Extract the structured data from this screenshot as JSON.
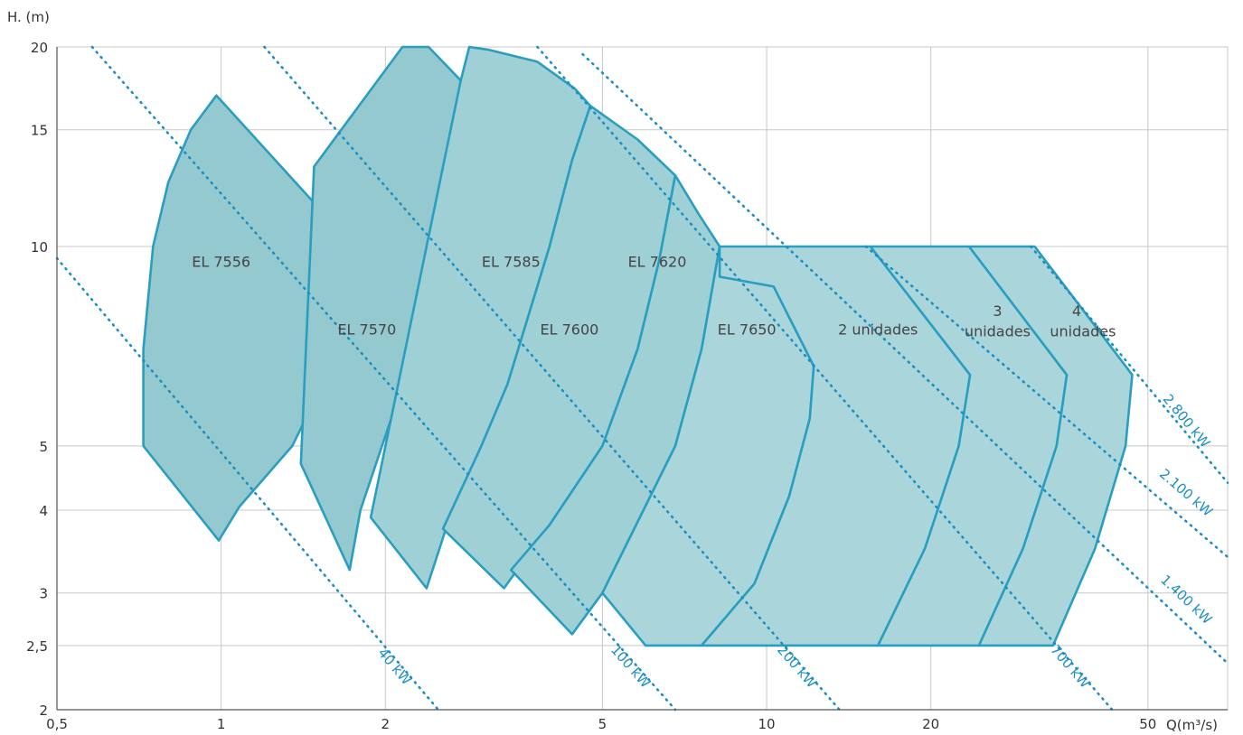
{
  "chart_data": {
    "type": "area",
    "title": "",
    "xlabel": "Q(m³/s)",
    "ylabel": "H. (m)",
    "x_scale": "log",
    "y_scale": "log",
    "xlim": [
      0.5,
      70
    ],
    "ylim": [
      2,
      20
    ],
    "grid": true,
    "x_ticks": [
      {
        "value": 0.5,
        "label": "0,5"
      },
      {
        "value": 1,
        "label": "1"
      },
      {
        "value": 2,
        "label": "2"
      },
      {
        "value": 5,
        "label": "5"
      },
      {
        "value": 10,
        "label": "10"
      },
      {
        "value": 20,
        "label": "20"
      },
      {
        "value": 50,
        "label": "50"
      }
    ],
    "y_ticks": [
      {
        "value": 2,
        "label": "2"
      },
      {
        "value": 2.5,
        "label": "2,5"
      },
      {
        "value": 3,
        "label": "3"
      },
      {
        "value": 4,
        "label": "4"
      },
      {
        "value": 5,
        "label": "5"
      },
      {
        "value": 10,
        "label": "10"
      },
      {
        "value": 15,
        "label": "15"
      },
      {
        "value": 20,
        "label": "20"
      }
    ],
    "colors": {
      "fill": "#9fd0d6",
      "fill_dark": "#94c9d0",
      "fill_light": "#aad6db",
      "stroke": "#2a9ec0",
      "power": "#1a8fc4",
      "grid": "#c8c8c8"
    },
    "regions": [
      {
        "label": "EL 7556",
        "label_at": [
          1.0,
          9.5
        ],
        "points": [
          [
            0.72,
            5.0
          ],
          [
            0.72,
            7.0
          ],
          [
            0.75,
            10.0
          ],
          [
            0.8,
            12.5
          ],
          [
            0.88,
            15.0
          ],
          [
            0.98,
            16.9
          ],
          [
            1.77,
            9.9
          ],
          [
            1.7,
            8.0
          ],
          [
            1.55,
            6.3
          ],
          [
            1.35,
            5.0
          ],
          [
            1.08,
            4.05
          ],
          [
            0.99,
            3.6
          ]
        ]
      },
      {
        "label": "EL 7570",
        "label_at": [
          1.85,
          7.5
        ],
        "points": [
          [
            1.4,
            4.7
          ],
          [
            1.48,
            13.2
          ],
          [
            2.15,
            20.0
          ],
          [
            2.4,
            20.0
          ],
          [
            2.75,
            17.8
          ],
          [
            2.68,
            13.5
          ],
          [
            2.5,
            10.0
          ],
          [
            2.3,
            7.5
          ],
          [
            2.05,
            5.5
          ],
          [
            1.8,
            4.0
          ],
          [
            1.72,
            3.25
          ]
        ]
      },
      {
        "label": "EL 7585",
        "label_at": [
          3.4,
          9.5
        ],
        "points": [
          [
            1.88,
            3.9
          ],
          [
            2.38,
            3.05
          ],
          [
            2.65,
            4.0
          ],
          [
            3.0,
            5.0
          ],
          [
            3.35,
            6.2
          ],
          [
            4.0,
            10.0
          ],
          [
            4.4,
            13.5
          ],
          [
            4.75,
            16.3
          ],
          [
            4.45,
            17.3
          ],
          [
            3.8,
            19.0
          ],
          [
            3.1,
            19.8
          ],
          [
            2.85,
            20.0
          ],
          [
            2.75,
            17.8
          ]
        ]
      },
      {
        "label": "EL 7600",
        "label_at": [
          4.35,
          7.5
        ],
        "points": [
          [
            2.55,
            3.75
          ],
          [
            3.3,
            3.05
          ],
          [
            4.0,
            3.8
          ],
          [
            5.0,
            5.0
          ],
          [
            5.8,
            7.0
          ],
          [
            6.35,
            9.5
          ],
          [
            6.8,
            12.8
          ],
          [
            5.8,
            14.5
          ],
          [
            4.75,
            16.3
          ],
          [
            4.4,
            13.5
          ],
          [
            4.0,
            10.0
          ],
          [
            3.35,
            6.2
          ],
          [
            3.0,
            5.0
          ]
        ]
      },
      {
        "label": "EL 7620",
        "label_at": [
          6.3,
          9.5
        ],
        "points": [
          [
            3.4,
            3.25
          ],
          [
            4.4,
            2.6
          ],
          [
            5.0,
            3.0
          ],
          [
            6.8,
            5.0
          ],
          [
            7.6,
            7.0
          ],
          [
            8.2,
            10.0
          ],
          [
            7.5,
            11.2
          ],
          [
            6.8,
            12.8
          ],
          [
            6.35,
            9.5
          ],
          [
            5.8,
            7.0
          ],
          [
            5.0,
            5.0
          ],
          [
            4.0,
            3.8
          ]
        ]
      },
      {
        "label": "EL 7650",
        "label_at": [
          9.2,
          7.5
        ],
        "points": [
          [
            5.0,
            3.0
          ],
          [
            6.0,
            2.5
          ],
          [
            7.6,
            2.5
          ],
          [
            9.5,
            3.1
          ],
          [
            11.0,
            4.2
          ],
          [
            12.0,
            5.5
          ],
          [
            12.2,
            6.6
          ],
          [
            10.3,
            8.7
          ],
          [
            8.2,
            10.0
          ],
          [
            7.6,
            7.0
          ],
          [
            6.8,
            5.0
          ]
        ]
      },
      {
        "label": "2 unidades",
        "label_at": [
          16.0,
          7.5
        ],
        "points": [
          [
            7.6,
            2.5
          ],
          [
            16.0,
            2.5
          ],
          [
            19.5,
            3.5
          ],
          [
            22.5,
            5.0
          ],
          [
            23.6,
            6.4
          ],
          [
            15.5,
            10.0
          ],
          [
            8.2,
            10.0
          ],
          [
            8.2,
            9.0
          ],
          [
            10.3,
            8.7
          ],
          [
            12.2,
            6.6
          ],
          [
            12.0,
            5.5
          ],
          [
            11.0,
            4.2
          ],
          [
            9.5,
            3.1
          ]
        ]
      },
      {
        "label": "3",
        "label_at": [
          26.5,
          8.0
        ],
        "points": [
          [
            16.0,
            2.5
          ],
          [
            24.5,
            2.5
          ],
          [
            29.5,
            3.5
          ],
          [
            34.0,
            5.0
          ],
          [
            35.5,
            6.4
          ],
          [
            23.5,
            10.0
          ],
          [
            15.5,
            10.0
          ],
          [
            23.6,
            6.4
          ],
          [
            22.5,
            5.0
          ],
          [
            19.5,
            3.5
          ]
        ]
      },
      {
        "label": "4",
        "label_at": [
          37.0,
          8.0
        ],
        "points": [
          [
            24.5,
            2.5
          ],
          [
            33.5,
            2.5
          ],
          [
            40.0,
            3.5
          ],
          [
            45.5,
            5.0
          ],
          [
            46.8,
            6.4
          ],
          [
            31.0,
            10.0
          ],
          [
            23.5,
            10.0
          ],
          [
            35.5,
            6.4
          ],
          [
            34.0,
            5.0
          ],
          [
            29.5,
            3.5
          ]
        ]
      }
    ],
    "region_sublabels": [
      {
        "text": "unidades",
        "at": [
          26.5,
          7.5
        ]
      },
      {
        "text": "unidades",
        "at": [
          38.0,
          7.5
        ]
      }
    ],
    "power_lines": [
      {
        "label": "40 kW",
        "x1": 0.5,
        "y1": 9.6,
        "x2": 2.5,
        "y2": 2.0
      },
      {
        "label": "100 kW",
        "x1": 0.58,
        "y1": 20.0,
        "x2": 6.8,
        "y2": 2.0
      },
      {
        "label": "200 kW",
        "x1": 1.2,
        "y1": 20.0,
        "x2": 13.6,
        "y2": 2.0
      },
      {
        "label": "700 kW",
        "x1": 3.8,
        "y1": 20.0,
        "x2": 43.0,
        "y2": 2.0
      },
      {
        "label": "1.400 kW",
        "x1": 4.6,
        "y1": 19.5,
        "x2": 70.0,
        "y2": 2.35
      },
      {
        "label": "2.100 kW",
        "x1": 15.2,
        "y1": 10.0,
        "x2": 70.0,
        "y2": 3.4
      },
      {
        "label": "2.800 kW",
        "x1": 30.5,
        "y1": 10.0,
        "x2": 70.0,
        "y2": 4.4
      }
    ],
    "power_label_positions": [
      {
        "at": [
          2.05,
          2.3
        ]
      },
      {
        "at": [
          5.55,
          2.3
        ]
      },
      {
        "at": [
          11.2,
          2.3
        ]
      },
      {
        "at": [
          35.5,
          2.3
        ]
      },
      {
        "at": [
          58.0,
          2.9
        ]
      },
      {
        "at": [
          58.0,
          4.2
        ]
      },
      {
        "at": [
          58.0,
          5.4
        ]
      }
    ]
  }
}
